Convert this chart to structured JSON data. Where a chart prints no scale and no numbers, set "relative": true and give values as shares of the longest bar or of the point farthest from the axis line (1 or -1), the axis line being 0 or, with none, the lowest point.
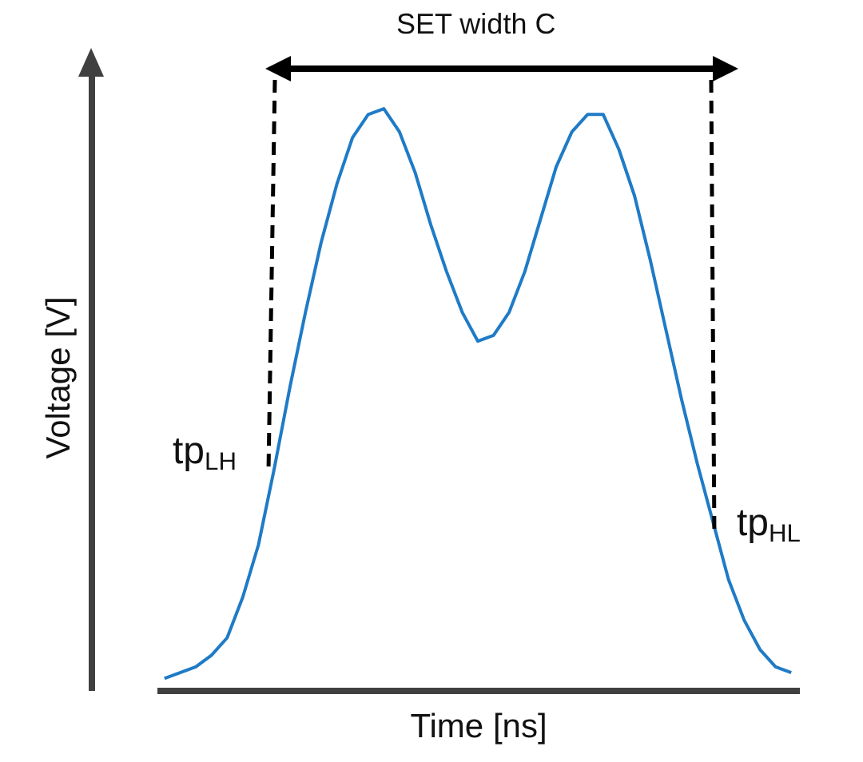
{
  "chart_data": {
    "type": "line",
    "relative": true,
    "xlabel": "Time [ns]",
    "ylabel": "Voltage [V]",
    "color": "#1f7bc6",
    "grid": false,
    "marker": "none",
    "line_style": "solid",
    "annotations": [
      "SET width C",
      "tp$_{LH}$",
      "tp$_{HL}$"
    ],
    "categories": [
      null,
      null,
      null,
      null,
      null,
      null,
      null,
      null,
      null,
      null,
      null,
      null,
      null,
      null,
      null,
      null,
      null,
      null,
      null,
      null,
      null,
      null,
      null,
      null,
      null,
      null,
      null,
      null,
      null,
      null,
      null,
      null,
      null,
      null,
      null,
      null,
      null,
      null,
      null,
      null,
      null
    ],
    "values": [
      0.02,
      0.03,
      0.04,
      0.06,
      0.09,
      0.16,
      0.25,
      0.38,
      0.52,
      0.65,
      0.77,
      0.87,
      0.95,
      0.99,
      1.0,
      0.96,
      0.89,
      0.8,
      0.72,
      0.65,
      0.6,
      0.61,
      0.65,
      0.72,
      0.81,
      0.9,
      0.96,
      0.99,
      0.99,
      0.93,
      0.85,
      0.74,
      0.62,
      0.5,
      0.39,
      0.29,
      0.19,
      0.12,
      0.07,
      0.04,
      0.03
    ]
  }
}
